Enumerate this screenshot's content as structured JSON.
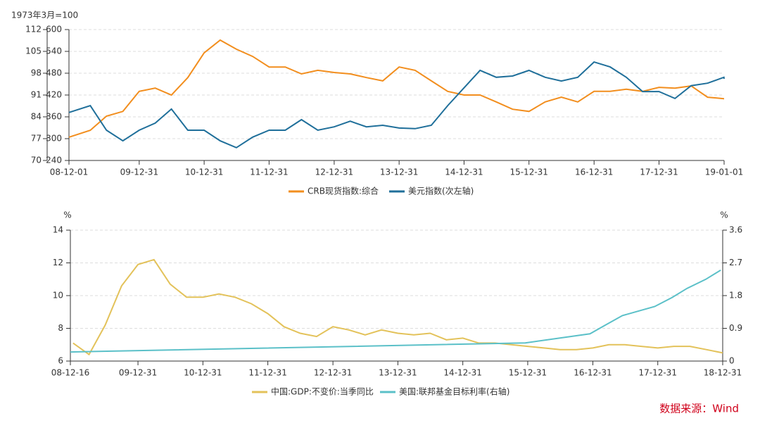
{
  "chart_data": [
    {
      "type": "line",
      "unit_label": "1973年3月=100",
      "xlim": [
        "08-12-01",
        "19-01-01"
      ],
      "xticks": [
        "08-12-01",
        "09-12-31",
        "10-12-31",
        "11-12-31",
        "12-12-31",
        "13-12-31",
        "14-12-31",
        "15-12-31",
        "16-12-31",
        "17-12-31",
        "19-01-01"
      ],
      "ylim": [
        240,
        600
      ],
      "yticks": [
        240,
        300,
        360,
        420,
        480,
        540,
        600
      ],
      "y2lim": [
        70,
        112
      ],
      "y2ticks": [
        70,
        77,
        84,
        91,
        98,
        105,
        112
      ],
      "grid": true,
      "series": [
        {
          "name": "CRB现货指数:综合",
          "color": "#f28e1e",
          "x": [
            "08-12-01",
            "09-03-31",
            "09-06-30",
            "09-09-30",
            "09-12-31",
            "10-03-31",
            "10-06-30",
            "10-09-30",
            "10-12-31",
            "11-03-31",
            "11-06-30",
            "11-09-30",
            "11-12-31",
            "12-03-31",
            "12-06-30",
            "12-09-30",
            "12-12-31",
            "13-03-31",
            "13-06-30",
            "13-09-30",
            "13-12-31",
            "14-03-31",
            "14-06-30",
            "14-09-30",
            "14-12-31",
            "15-03-31",
            "15-06-30",
            "15-09-30",
            "15-12-31",
            "16-03-31",
            "16-06-30",
            "16-09-30",
            "16-12-31",
            "17-03-31",
            "17-06-30",
            "17-09-30",
            "17-12-31",
            "18-03-31",
            "18-06-30",
            "18-09-30",
            "18-12-31",
            "19-01-01"
          ],
          "values": [
            304,
            323,
            362,
            375,
            430,
            439,
            420,
            468,
            536,
            571,
            546,
            526,
            497,
            497,
            478,
            488,
            482,
            478,
            468,
            459,
            497,
            488,
            459,
            430,
            420,
            420,
            401,
            381,
            375,
            401,
            414,
            401,
            430,
            430,
            436,
            430,
            441,
            439,
            445,
            414,
            410,
            410
          ]
        },
        {
          "name": "美元指数(次左轴)",
          "color": "#1f6f9a",
          "axis": "y2",
          "x": [
            "08-12-01",
            "09-03-31",
            "09-06-30",
            "09-09-30",
            "09-12-31",
            "10-03-31",
            "10-06-30",
            "10-09-30",
            "10-12-31",
            "11-03-31",
            "11-06-30",
            "11-09-30",
            "11-12-31",
            "12-03-31",
            "12-06-30",
            "12-09-30",
            "12-12-31",
            "13-03-31",
            "13-06-30",
            "13-09-30",
            "13-12-31",
            "14-03-31",
            "14-06-30",
            "14-09-30",
            "14-12-31",
            "15-03-31",
            "15-06-30",
            "15-09-30",
            "15-12-31",
            "16-03-31",
            "16-06-30",
            "16-09-30",
            "16-12-31",
            "17-03-31",
            "17-06-30",
            "17-09-30",
            "17-12-31",
            "18-03-31",
            "18-06-30",
            "18-09-30",
            "18-12-31",
            "19-01-01"
          ],
          "values": [
            85.4,
            87.6,
            79.7,
            76.3,
            79.7,
            82,
            86.5,
            79.7,
            79.7,
            76.3,
            74.1,
            77.5,
            79.7,
            79.7,
            83.1,
            79.7,
            80.8,
            82.6,
            80.8,
            81.3,
            80.4,
            80.2,
            81.3,
            87.6,
            93.3,
            98.9,
            96.7,
            97.1,
            98.9,
            96.7,
            95.5,
            96.7,
            101.6,
            100,
            96.7,
            92.1,
            92.1,
            89.9,
            94,
            94.8,
            96.7,
            96.2
          ]
        }
      ]
    },
    {
      "type": "line",
      "ylabel": "%",
      "y2label": "%",
      "xlim": [
        "08-12-16",
        "18-12-31"
      ],
      "xticks": [
        "08-12-16",
        "09-12-31",
        "10-12-31",
        "11-12-31",
        "12-12-31",
        "13-12-31",
        "14-12-31",
        "15-12-31",
        "16-12-31",
        "17-12-31",
        "18-12-31"
      ],
      "ylim": [
        6,
        14
      ],
      "yticks": [
        6,
        8,
        10,
        12,
        14
      ],
      "y2lim": [
        0,
        3.6
      ],
      "y2ticks": [
        0,
        0.9,
        1.8,
        2.7,
        3.6
      ],
      "grid": true,
      "series": [
        {
          "name": "中国:GDP:不变价:当季同比",
          "color": "#e3c25a",
          "x": [
            "08-12-31",
            "09-03-31",
            "09-06-30",
            "09-09-30",
            "09-12-31",
            "10-03-31",
            "10-06-30",
            "10-09-30",
            "10-12-31",
            "11-03-31",
            "11-06-30",
            "11-09-30",
            "11-12-31",
            "12-03-31",
            "12-06-30",
            "12-09-30",
            "12-12-31",
            "13-03-31",
            "13-06-30",
            "13-09-30",
            "13-12-31",
            "14-03-31",
            "14-06-30",
            "14-09-30",
            "14-12-31",
            "15-03-31",
            "15-06-30",
            "15-09-30",
            "15-12-31",
            "16-03-31",
            "16-06-30",
            "16-09-30",
            "16-12-31",
            "17-03-31",
            "17-06-30",
            "17-09-30",
            "17-12-31",
            "18-03-31",
            "18-06-30",
            "18-09-30",
            "18-12-31"
          ],
          "values": [
            7.1,
            6.4,
            8.2,
            10.6,
            11.9,
            12.2,
            10.7,
            9.9,
            9.9,
            10.1,
            9.9,
            9.5,
            8.9,
            8.1,
            7.7,
            7.5,
            8.1,
            7.9,
            7.6,
            7.9,
            7.7,
            7.6,
            7.7,
            7.3,
            7.4,
            7.1,
            7.1,
            7.0,
            6.9,
            6.8,
            6.7,
            6.7,
            6.8,
            7.0,
            7.0,
            6.9,
            6.8,
            6.9,
            6.9,
            6.7,
            6.5
          ]
        },
        {
          "name": "美国:联邦基金目标利率(右轴)",
          "color": "#5bc0c8",
          "axis": "y2",
          "x": [
            "08-12-16",
            "15-12-17",
            "16-12-15",
            "17-03-16",
            "17-06-15",
            "17-12-14",
            "18-03-22",
            "18-06-14",
            "18-09-27",
            "18-12-20"
          ],
          "values": [
            0.25,
            0.5,
            0.75,
            1.0,
            1.25,
            1.5,
            1.75,
            2.0,
            2.25,
            2.5
          ]
        }
      ]
    }
  ],
  "source": "数据来源：Wind"
}
